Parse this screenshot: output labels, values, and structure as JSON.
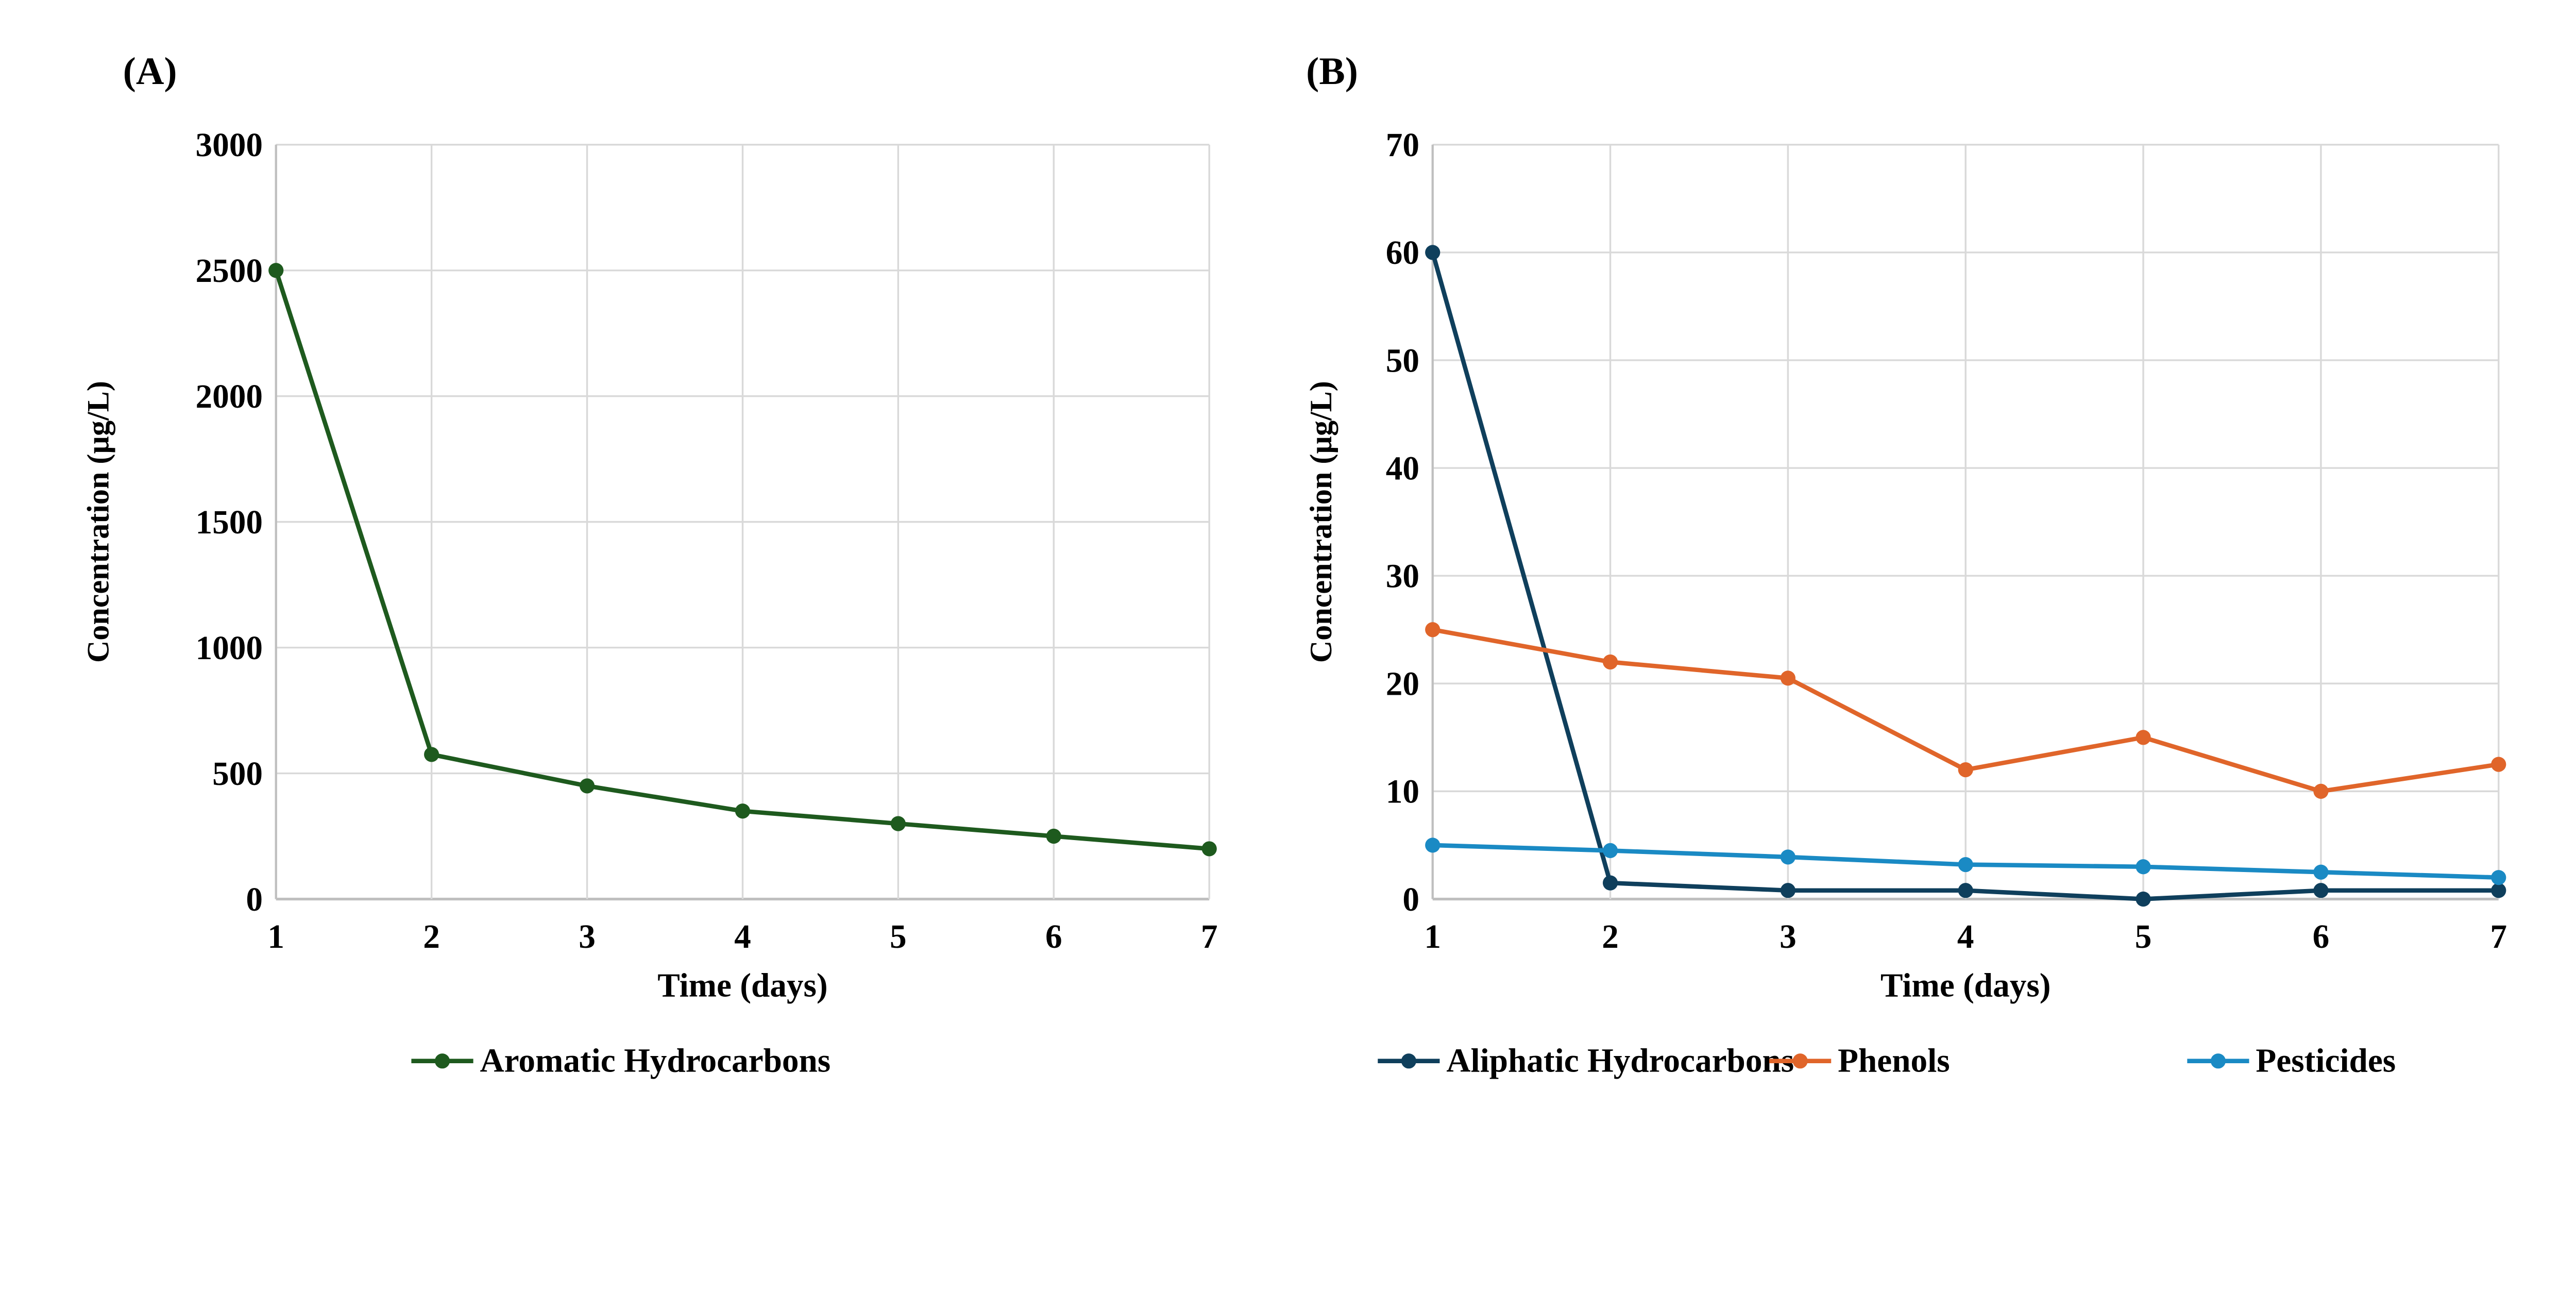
{
  "chart_data": [
    {
      "type": "line",
      "panel_label": "(A)",
      "xlabel": "Time (days)",
      "ylabel": "Concentration (µg/L)",
      "x": [
        1,
        2,
        3,
        4,
        5,
        6,
        7
      ],
      "xticks": [
        "1",
        "2",
        "3",
        "4",
        "5",
        "6",
        "7"
      ],
      "ylim": [
        0,
        3000
      ],
      "yticks": [
        "0",
        "500",
        "1000",
        "1500",
        "2000",
        "2500",
        "3000"
      ],
      "grid": true,
      "legend_position": "bottom",
      "series": [
        {
          "name": "Aromatic Hydrocarbons",
          "color": "#1e5a1e",
          "values": [
            2500,
            575,
            450,
            350,
            300,
            250,
            200
          ]
        }
      ]
    },
    {
      "type": "line",
      "panel_label": "(B)",
      "xlabel": "Time (days)",
      "ylabel": "Concentration (µg/L)",
      "x": [
        1,
        2,
        3,
        4,
        5,
        6,
        7
      ],
      "xticks": [
        "1",
        "2",
        "3",
        "4",
        "5",
        "6",
        "7"
      ],
      "ylim": [
        0,
        70
      ],
      "yticks": [
        "0",
        "10",
        "20",
        "30",
        "40",
        "50",
        "60",
        "70"
      ],
      "grid": true,
      "legend_position": "bottom",
      "series": [
        {
          "name": "Aliphatic Hydrocarbons",
          "color": "#0f3f5c",
          "values": [
            60,
            1.5,
            0.8,
            0.8,
            0,
            0.8,
            0.8
          ]
        },
        {
          "name": "Phenols",
          "color": "#e0652a",
          "values": [
            25,
            22,
            20.5,
            12,
            15,
            10,
            12.5
          ]
        },
        {
          "name": "Pesticides",
          "color": "#1a8ac4",
          "values": [
            5,
            4.5,
            3.9,
            3.2,
            3,
            2.5,
            2
          ]
        }
      ]
    }
  ]
}
